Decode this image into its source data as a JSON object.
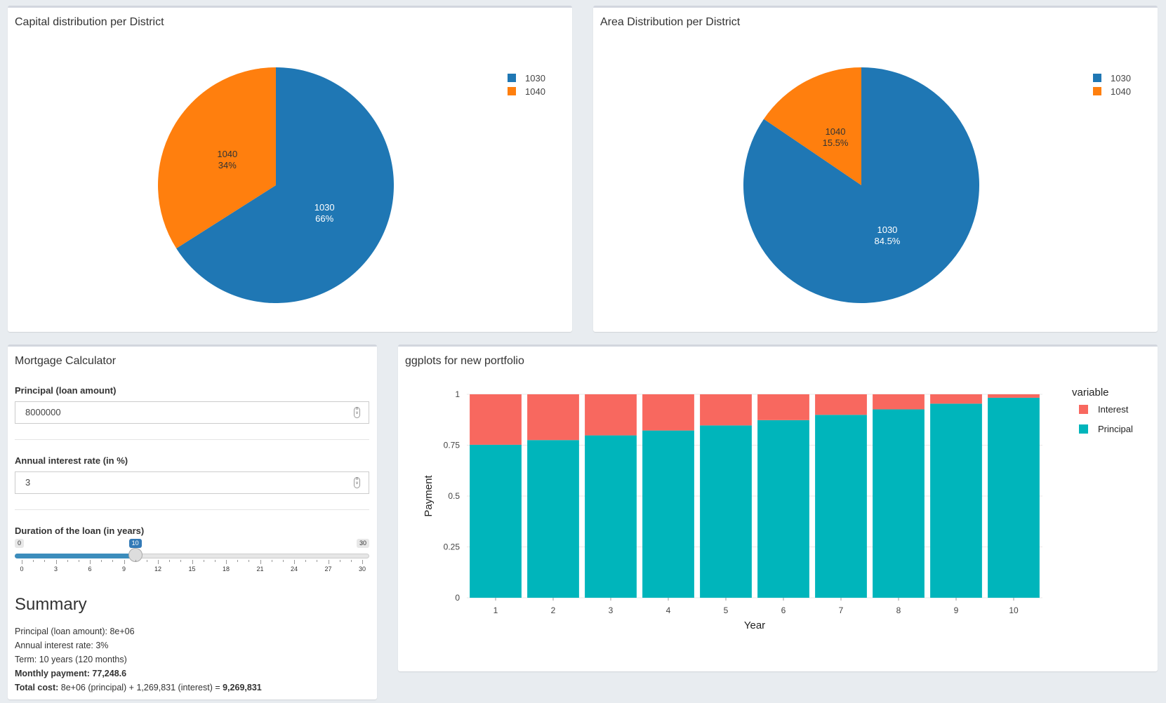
{
  "panels": {
    "capital": {
      "title": "Capital distribution per District",
      "chart_data": {
        "type": "pie",
        "categories": [
          "1030",
          "1040"
        ],
        "values": [
          66,
          34
        ],
        "labels": [
          "66%",
          "34%"
        ],
        "colors": [
          "#1f77b4",
          "#ff7f0e"
        ],
        "legend": "top-right"
      }
    },
    "area": {
      "title": "Area Distribution per District",
      "chart_data": {
        "type": "pie",
        "categories": [
          "1030",
          "1040"
        ],
        "values": [
          84.5,
          15.5
        ],
        "labels": [
          "84.5%",
          "15.5%"
        ],
        "colors": [
          "#1f77b4",
          "#ff7f0e"
        ],
        "legend": "top-right"
      }
    }
  },
  "calculator": {
    "title": "Mortgage Calculator",
    "principal_label": "Principal (loan amount)",
    "principal_value": "8000000",
    "rate_label": "Annual interest rate (in %)",
    "rate_value": "3",
    "duration_label": "Duration of the loan (in years)",
    "slider": {
      "min_label": "0",
      "max_label": "30",
      "value_label": "10",
      "value": 10,
      "min": 0,
      "max": 30,
      "ticks": [
        "0",
        "3",
        "6",
        "9",
        "12",
        "15",
        "18",
        "21",
        "24",
        "27",
        "30"
      ]
    },
    "summary": {
      "heading": "Summary",
      "principal_line": "Principal (loan amount): 8e+06",
      "rate_line": "Annual interest rate: 3%",
      "term_line": "Term: 10 years (120 months)",
      "monthly_label": "Monthly payment: 77,248.6",
      "total_prefix": "Total cost:",
      "total_middle": " 8e+06 (principal) + 1,269,831 (interest) = ",
      "total_value": "9,269,831"
    }
  },
  "portfolio": {
    "title": "ggplots for new portfolio",
    "chart_data": {
      "type": "bar",
      "stacked": true,
      "categories": [
        "1",
        "2",
        "3",
        "4",
        "5",
        "6",
        "7",
        "8",
        "9",
        "10"
      ],
      "series": [
        {
          "name": "Principal",
          "color": "#00b5bb",
          "values": [
            0.752,
            0.775,
            0.798,
            0.822,
            0.847,
            0.873,
            0.899,
            0.926,
            0.954,
            0.983
          ]
        },
        {
          "name": "Interest",
          "color": "#f8685f",
          "values": [
            0.248,
            0.225,
            0.202,
            0.178,
            0.153,
            0.127,
            0.101,
            0.074,
            0.046,
            0.017
          ]
        }
      ],
      "xlabel": "Year",
      "ylabel": "Payment",
      "ylim": [
        0,
        1
      ],
      "yticks": [
        "0",
        "0.25",
        "0.5",
        "0.75",
        "1"
      ],
      "ytick_values": [
        0,
        0.25,
        0.5,
        0.75,
        1
      ],
      "legend_title": "variable",
      "legend_entries": [
        "Interest",
        "Principal"
      ],
      "legend_colors": [
        "#f8685f",
        "#00b5bb"
      ],
      "grid": true
    }
  }
}
